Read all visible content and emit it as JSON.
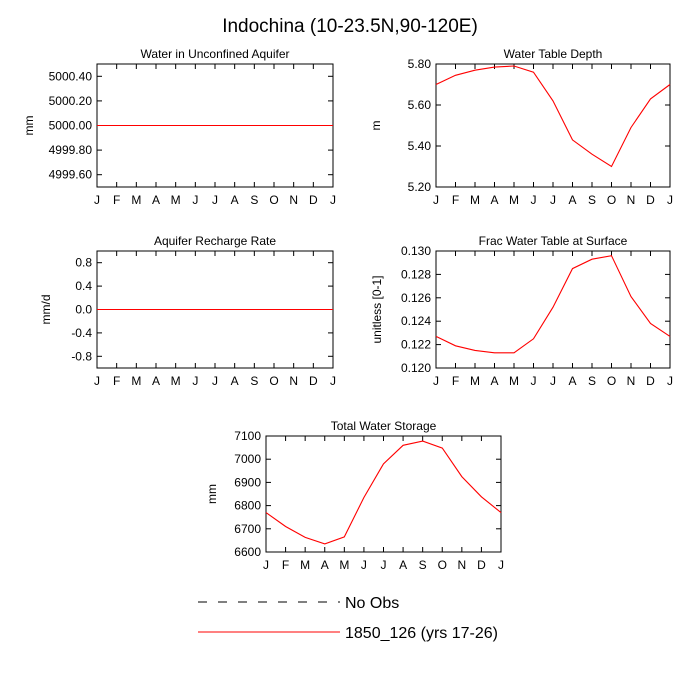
{
  "figure": {
    "title": "Indochina (10-23.5N,90-120E)",
    "line_color": "#ff0000",
    "obs_color": "#000000"
  },
  "legend": {
    "obs_label": "No Obs",
    "model_label": "1850_126 (yrs 17-26)"
  },
  "chart_data": [
    {
      "type": "line",
      "title": "Water in Unconfined Aquifer",
      "ylabel": "mm",
      "categories": [
        "J",
        "F",
        "M",
        "A",
        "M",
        "J",
        "J",
        "A",
        "S",
        "O",
        "N",
        "D",
        "J"
      ],
      "ylim": [
        4999.5,
        5000.5
      ],
      "yticks": [
        "5000.40",
        "5000.20",
        "5000.00",
        "4999.80",
        "4999.60"
      ],
      "ytick_values": [
        5000.4,
        5000.2,
        5000.0,
        4999.8,
        4999.6
      ],
      "series": [
        {
          "name": "1850_126 (yrs 17-26)",
          "values": [
            5000,
            5000,
            5000,
            5000,
            5000,
            5000,
            5000,
            5000,
            5000,
            5000,
            5000,
            5000,
            5000
          ]
        }
      ]
    },
    {
      "type": "line",
      "title": "Water Table Depth",
      "ylabel": "m",
      "categories": [
        "J",
        "F",
        "M",
        "A",
        "M",
        "J",
        "J",
        "A",
        "S",
        "O",
        "N",
        "D",
        "J"
      ],
      "ylim": [
        5.2,
        5.8
      ],
      "yticks": [
        "5.80",
        "5.60",
        "5.40",
        "5.20"
      ],
      "ytick_values": [
        5.8,
        5.6,
        5.4,
        5.2
      ],
      "series": [
        {
          "name": "1850_126 (yrs 17-26)",
          "values": [
            5.7,
            5.745,
            5.77,
            5.785,
            5.79,
            5.76,
            5.62,
            5.43,
            5.36,
            5.3,
            5.49,
            5.63,
            5.7
          ]
        }
      ]
    },
    {
      "type": "line",
      "title": "Aquifer Recharge Rate",
      "ylabel": "mm/d",
      "categories": [
        "J",
        "F",
        "M",
        "A",
        "M",
        "J",
        "J",
        "A",
        "S",
        "O",
        "N",
        "D",
        "J"
      ],
      "ylim": [
        -1.0,
        1.0
      ],
      "yticks": [
        "0.8",
        "0.4",
        "0.0",
        "-0.4",
        "-0.8"
      ],
      "ytick_values": [
        0.8,
        0.4,
        0.0,
        -0.4,
        -0.8
      ],
      "series": [
        {
          "name": "1850_126 (yrs 17-26)",
          "values": [
            0,
            0,
            0,
            0,
            0,
            0,
            0,
            0,
            0,
            0,
            0,
            0,
            0
          ]
        }
      ]
    },
    {
      "type": "line",
      "title": "Frac Water Table at Surface",
      "ylabel": "unitless [0-1]",
      "categories": [
        "J",
        "F",
        "M",
        "A",
        "M",
        "J",
        "J",
        "A",
        "S",
        "O",
        "N",
        "D",
        "J"
      ],
      "ylim": [
        0.12,
        0.13
      ],
      "yticks": [
        "0.130",
        "0.128",
        "0.126",
        "0.124",
        "0.122",
        "0.120"
      ],
      "ytick_values": [
        0.13,
        0.128,
        0.126,
        0.124,
        0.122,
        0.12
      ],
      "series": [
        {
          "name": "1850_126 (yrs 17-26)",
          "values": [
            0.1227,
            0.1219,
            0.1215,
            0.1213,
            0.1213,
            0.1225,
            0.1252,
            0.1285,
            0.1293,
            0.1296,
            0.1261,
            0.1238,
            0.1227
          ]
        }
      ]
    },
    {
      "type": "line",
      "title": "Total Water Storage",
      "ylabel": "mm",
      "categories": [
        "J",
        "F",
        "M",
        "A",
        "M",
        "J",
        "J",
        "A",
        "S",
        "O",
        "N",
        "D",
        "J"
      ],
      "ylim": [
        6600,
        7100
      ],
      "yticks": [
        "7100",
        "7000",
        "6900",
        "6800",
        "6700",
        "6600"
      ],
      "ytick_values": [
        7100,
        7000,
        6900,
        6800,
        6700,
        6600
      ],
      "series": [
        {
          "name": "1850_126 (yrs 17-26)",
          "values": [
            6770,
            6710,
            6663,
            6635,
            6665,
            6835,
            6980,
            7060,
            7078,
            7048,
            6925,
            6838,
            6770
          ]
        }
      ]
    }
  ]
}
